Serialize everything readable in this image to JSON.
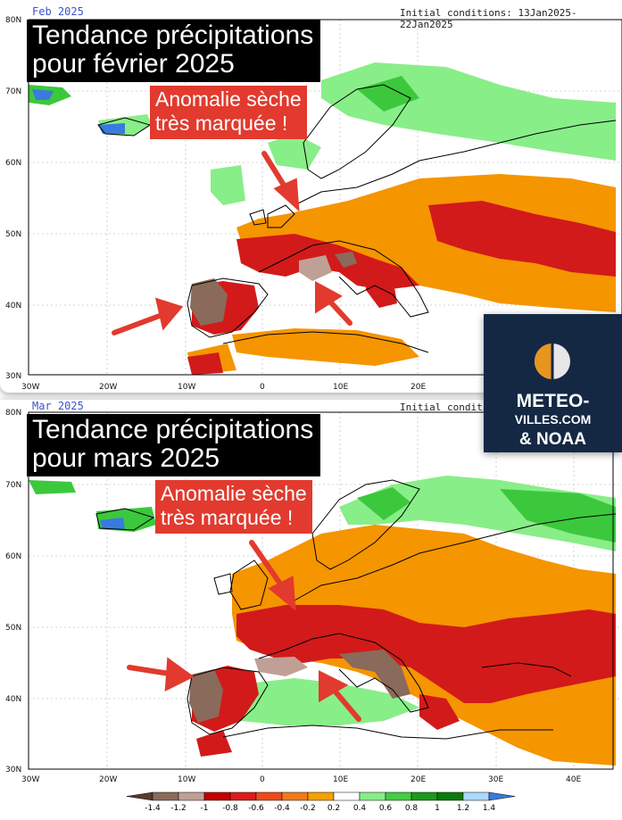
{
  "top_map": {
    "date_label": "Feb 2025",
    "init_label": "Initial conditions: 13Jan2025-22Jan2025",
    "title_line1": "Tendance précipitations",
    "title_line2": "pour février 2025",
    "anomaly_line1": "Anomalie sèche",
    "anomaly_line2": "très marquée !",
    "lat_ticks": [
      "80N",
      "70N",
      "60N",
      "50N",
      "40N",
      "30N"
    ],
    "lon_ticks": [
      "30W",
      "20W",
      "10W",
      "0",
      "10E",
      "20E"
    ]
  },
  "bottom_map": {
    "date_label": "Mar 2025",
    "init_label": "Initial conditions:",
    "title_line1": "Tendance précipitations",
    "title_line2": "pour mars 2025",
    "anomaly_line1": "Anomalie sèche",
    "anomaly_line2": "très marquée !",
    "lat_ticks": [
      "80N",
      "70N",
      "60N",
      "50N",
      "40N",
      "30N"
    ],
    "lon_ticks": [
      "30W",
      "20W",
      "10W",
      "0",
      "10E",
      "20E",
      "30E",
      "40E"
    ]
  },
  "logo": {
    "line1": "METEO-",
    "line2": "VILLES.COM",
    "line3": "& NOAA"
  },
  "legend": {
    "labels": [
      "-1.4",
      "-1.2",
      "-1",
      "-0.8",
      "-0.6",
      "-0.4",
      "-0.2",
      "0.2",
      "0.4",
      "0.6",
      "0.8",
      "1",
      "1.2",
      "1.4"
    ],
    "colors": [
      "#5a3a2a",
      "#8a6a5a",
      "#c0a096",
      "#c00000",
      "#dd1a1a",
      "#ee4a1a",
      "#f07a1a",
      "#f5a000",
      "#ffffff",
      "#88ee88",
      "#44cc44",
      "#1a9a1a",
      "#0a7a0a",
      "#aad8ff",
      "#3a7adf"
    ]
  },
  "colors": {
    "dry_dark": "#8a6a5a",
    "dry_red": "#d21a1a",
    "dry_orange": "#f59500",
    "wet_light": "#88ee88",
    "wet_green": "#3cc83c",
    "accent_red": "#e23a2e"
  }
}
